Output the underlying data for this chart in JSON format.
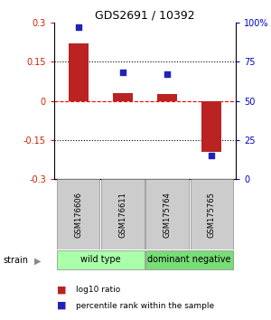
{
  "title": "GDS2691 / 10392",
  "samples": [
    "GSM176606",
    "GSM176611",
    "GSM175764",
    "GSM175765"
  ],
  "log10_ratio": [
    0.22,
    0.03,
    0.025,
    -0.195
  ],
  "percentile_rank": [
    97,
    68,
    67,
    15
  ],
  "bar_color": "#bb2222",
  "dot_color": "#2222bb",
  "ylim_left": [
    -0.3,
    0.3
  ],
  "ylim_right": [
    0,
    100
  ],
  "yticks_left": [
    -0.3,
    -0.15,
    0.0,
    0.15,
    0.3
  ],
  "yticks_right": [
    0,
    25,
    50,
    75,
    100
  ],
  "ytick_labels_left": [
    "-0.3",
    "-0.15",
    "0",
    "0.15",
    "0.3"
  ],
  "ytick_labels_right": [
    "0",
    "25",
    "50",
    "75",
    "100%"
  ],
  "hlines": [
    -0.15,
    0.0,
    0.15
  ],
  "hline_styles": [
    "dotted",
    "dashed",
    "dotted"
  ],
  "hline_colors": [
    "black",
    "red",
    "black"
  ],
  "groups": [
    {
      "label": "wild type",
      "samples": [
        0,
        1
      ],
      "color": "#aaffaa"
    },
    {
      "label": "dominant negative",
      "samples": [
        2,
        3
      ],
      "color": "#77dd77"
    }
  ],
  "strain_label": "strain",
  "legend_items": [
    {
      "label": "log10 ratio",
      "color": "#bb2222"
    },
    {
      "label": "percentile rank within the sample",
      "color": "#2222bb"
    }
  ],
  "bar_width": 0.45,
  "bg_color": "#ffffff",
  "plot_bg": "#ffffff",
  "left_tick_color": "#cc2200",
  "right_tick_color": "#0000cc",
  "sample_box_color": "#cccccc",
  "sample_box_edge": "#888888"
}
